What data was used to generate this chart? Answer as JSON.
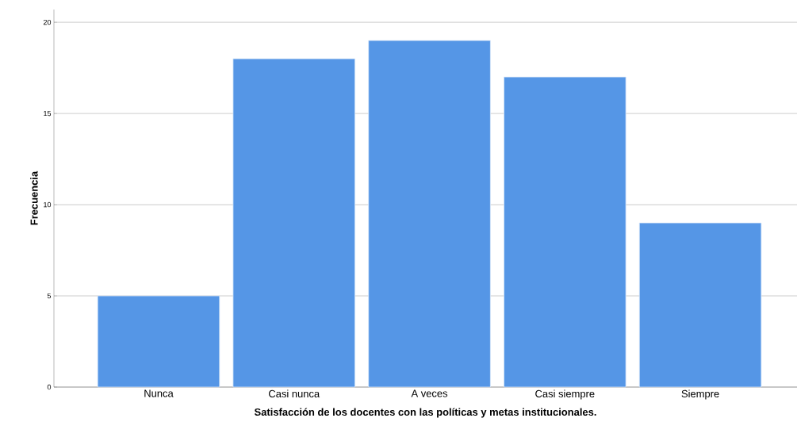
{
  "chart_data": {
    "type": "bar",
    "xlabel": "Satisfacción de los docentes con las políticas y metas institucionales.",
    "ylabel": "Frecuencia",
    "categories": [
      "Nunca",
      "Casi nunca",
      "A veces",
      "Casi siempre",
      "Siempre"
    ],
    "values": [
      5,
      18,
      19,
      17,
      9
    ],
    "color": "#5596e6",
    "ylim": [
      0,
      20.7
    ],
    "yticks": [
      0,
      5,
      10,
      15,
      20
    ],
    "grid": "y"
  }
}
